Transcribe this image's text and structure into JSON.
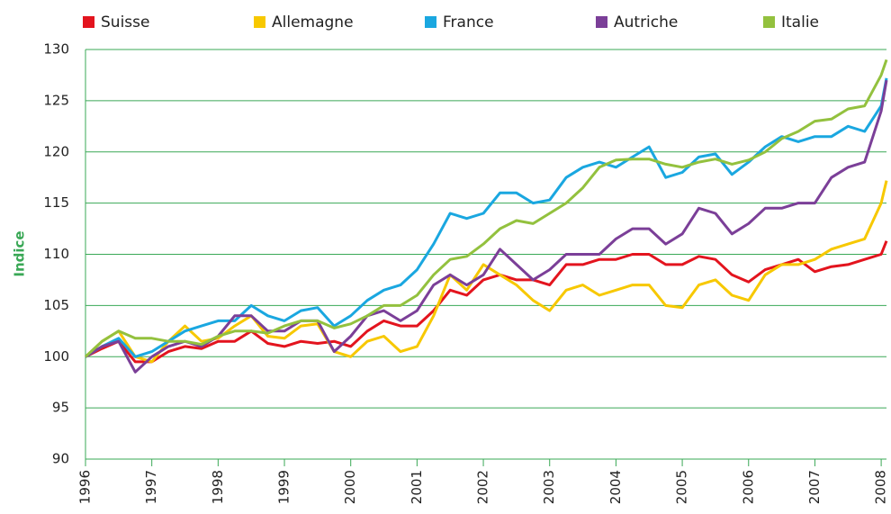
{
  "chart_data": {
    "type": "line",
    "y_label": "Indice",
    "x": [
      1996,
      1996.25,
      1996.5,
      1996.75,
      1997,
      1997.25,
      1997.5,
      1997.75,
      1998,
      1998.25,
      1998.5,
      1998.75,
      1999,
      1999.25,
      1999.5,
      1999.75,
      2000,
      2000.25,
      2000.5,
      2000.75,
      2001,
      2001.25,
      2001.5,
      2001.75,
      2002,
      2002.25,
      2002.5,
      2002.75,
      2003,
      2003.25,
      2003.5,
      2003.75,
      2004,
      2004.25,
      2004.5,
      2004.75,
      2005,
      2005.25,
      2005.5,
      2005.75,
      2006,
      2006.25,
      2006.5,
      2006.75,
      2007,
      2007.25,
      2007.5,
      2007.75,
      2008,
      2008.08
    ],
    "series": [
      {
        "name": "Suisse",
        "color": "#e3141e",
        "values": [
          100,
          100.8,
          101.5,
          99.5,
          99.5,
          100.5,
          101,
          100.8,
          101.5,
          101.5,
          102.5,
          101.3,
          101,
          101.5,
          101.3,
          101.5,
          101,
          102.5,
          103.5,
          103,
          103,
          104.5,
          106.5,
          106,
          107.5,
          108,
          107.5,
          107.5,
          107,
          109,
          109,
          109.5,
          109.5,
          110,
          110,
          109,
          109,
          109.8,
          109.5,
          108,
          107.3,
          108.5,
          109,
          109.5,
          108.3,
          108.8,
          109,
          109.5,
          110,
          111.3
        ]
      },
      {
        "name": "Allemagne",
        "color": "#f7c800",
        "values": [
          100,
          101.5,
          102.5,
          100,
          99.5,
          101.5,
          103,
          101.5,
          101.8,
          103,
          104,
          102,
          101.8,
          103,
          103.2,
          100.5,
          100,
          101.5,
          102,
          100.5,
          101,
          104,
          108,
          106.5,
          109,
          108,
          107,
          105.5,
          104.5,
          106.5,
          107,
          106,
          106.5,
          107,
          107,
          105,
          104.8,
          107,
          107.5,
          106,
          105.5,
          108,
          109,
          109,
          109.5,
          110.5,
          111,
          111.5,
          115,
          117.2
        ]
      },
      {
        "name": "France",
        "color": "#1aa7e0",
        "values": [
          100,
          101,
          101.8,
          100,
          100.5,
          101.5,
          102.5,
          103,
          103.5,
          103.5,
          105,
          104,
          103.5,
          104.5,
          104.8,
          103,
          104,
          105.5,
          106.5,
          107,
          108.5,
          111,
          114,
          113.5,
          114,
          116,
          116,
          115,
          115.3,
          117.5,
          118.5,
          119,
          118.5,
          119.5,
          120.5,
          117.5,
          118,
          119.5,
          119.8,
          117.8,
          119,
          120.5,
          121.5,
          121,
          121.5,
          121.5,
          122.5,
          122,
          124.5,
          127.2
        ]
      },
      {
        "name": "Autriche",
        "color": "#7b3f98",
        "values": [
          100,
          101,
          101.5,
          98.5,
          100,
          101,
          101.5,
          101,
          102,
          104,
          104,
          102.5,
          102.5,
          103.5,
          103.5,
          100.5,
          102,
          104,
          104.5,
          103.5,
          104.5,
          107,
          108,
          107,
          108,
          110.5,
          109,
          107.5,
          108.5,
          110,
          110,
          110,
          111.5,
          112.5,
          112.5,
          111,
          112,
          114.5,
          114,
          112,
          113,
          114.5,
          114.5,
          115,
          115,
          117.5,
          118.5,
          119,
          124,
          127
        ]
      },
      {
        "name": "Italie",
        "color": "#93c13e",
        "values": [
          100,
          101.5,
          102.5,
          101.8,
          101.8,
          101.5,
          101.5,
          101.2,
          102,
          102.5,
          102.5,
          102.3,
          103,
          103.5,
          103.5,
          102.8,
          103.2,
          104,
          105,
          105,
          106,
          108,
          109.5,
          109.8,
          111,
          112.5,
          113.3,
          113,
          114,
          115,
          116.5,
          118.5,
          119.2,
          119.3,
          119.3,
          118.8,
          118.5,
          119,
          119.3,
          118.8,
          119.2,
          120,
          121.3,
          122,
          123,
          123.2,
          124.2,
          124.5,
          127.5,
          129
        ]
      }
    ],
    "xlim": [
      1996,
      2008.08
    ],
    "xticks": [
      1996,
      1997,
      1998,
      1999,
      2000,
      2001,
      2002,
      2003,
      2004,
      2005,
      2006,
      2007,
      2008
    ],
    "ylim": [
      90,
      130
    ],
    "yticks": [
      90,
      95,
      100,
      105,
      110,
      115,
      120,
      125,
      130
    ],
    "grid": true,
    "grid_color": "#3aa856",
    "legend": "top"
  }
}
